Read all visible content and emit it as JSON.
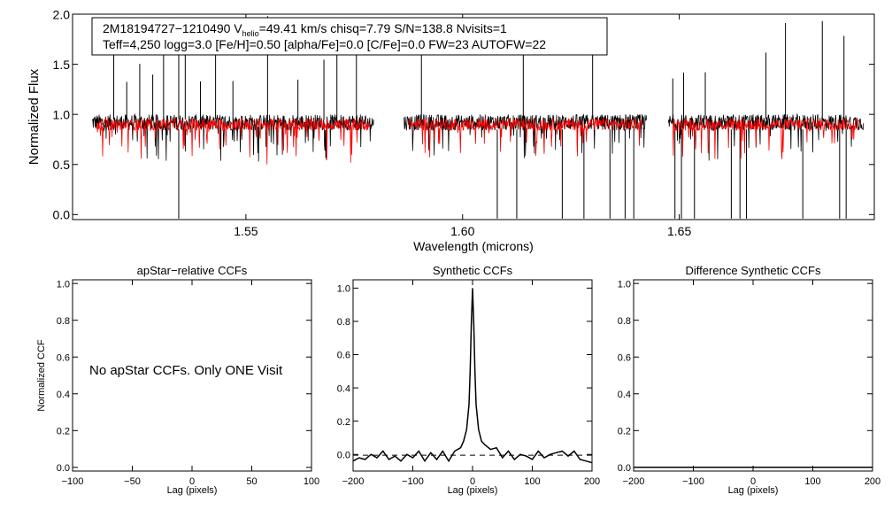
{
  "chart_data": [
    {
      "type": "line",
      "id": "spectrum",
      "ylabel": "Normalized Flux",
      "xlabel": "Wavelength (microns)",
      "xlim": [
        1.51,
        1.695
      ],
      "ylim": [
        -0.05,
        2.0
      ],
      "xticks": [
        1.55,
        1.6,
        1.65
      ],
      "xtick_labels": [
        "1.55",
        "1.60",
        "1.65"
      ],
      "yticks": [
        0.0,
        0.5,
        1.0,
        1.5,
        2.0
      ],
      "ytick_labels": [
        "0.0",
        "0.5",
        "1.0",
        "1.5",
        "2.0"
      ],
      "annotation": {
        "line1_prefix": "2M18194727−1210490  V",
        "line1_sub": "helio",
        "line1_suffix": "=49.41 km/s  chisq=7.79  S/N=138.8  Nvisits=1",
        "line2": "Teff=4,250 logg=3.0 [Fe/H]=0.50 [alpha/Fe]=0.0 [C/Fe]=0.0 FW=23 AUTOFW=22"
      },
      "series": [
        {
          "name": "observed",
          "color": "#000000"
        },
        {
          "name": "model",
          "color": "#ff0000"
        }
      ],
      "segments": [
        [
          1.5145,
          1.5795
        ],
        [
          1.5865,
          1.6425
        ],
        [
          1.6475,
          1.6925
        ]
      ],
      "model_segments": [
        [
          1.5155,
          1.5785
        ],
        [
          1.5875,
          1.6415
        ],
        [
          1.6485,
          1.6915
        ]
      ],
      "spikes_up": [
        1.5195,
        1.5225,
        1.5255,
        1.5285,
        1.531,
        1.5345,
        1.536,
        1.5395,
        1.543,
        1.547,
        1.555,
        1.562,
        1.568,
        1.571,
        1.5755,
        1.5905,
        1.614,
        1.63,
        1.6485,
        1.651,
        1.656,
        1.67,
        1.6745,
        1.683,
        1.688
      ],
      "spikes_down": [
        1.5345,
        1.608,
        1.6125,
        1.623,
        1.628,
        1.634,
        1.6375,
        1.6395,
        1.649,
        1.6505,
        1.6535,
        1.662,
        1.664,
        1.6655,
        1.6785,
        1.687,
        1.6885
      ]
    },
    {
      "type": "line",
      "id": "apstar_ccf",
      "title": "apStar−relative CCFs",
      "ylabel": "Normalized CCF",
      "xlabel": "Lag (pixels)",
      "xlim": [
        -100,
        100
      ],
      "ylim": [
        -0.02,
        1.02
      ],
      "xticks": [
        -100,
        -50,
        0,
        50,
        100
      ],
      "xtick_labels": [
        "−100",
        "−50",
        "0",
        "50",
        "100"
      ],
      "yticks": [
        0.0,
        0.2,
        0.4,
        0.6,
        0.8,
        1.0
      ],
      "ytick_labels": [
        "0.0",
        "0.2",
        "0.4",
        "0.6",
        "0.8",
        "1.0"
      ],
      "message": "No apStar CCFs.  Only ONE Visit",
      "series": []
    },
    {
      "type": "line",
      "id": "synthetic_ccf",
      "title": "Synthetic CCFs",
      "xlabel": "Lag (pixels)",
      "xlim": [
        -200,
        200
      ],
      "ylim": [
        -0.1,
        1.05
      ],
      "xticks": [
        -200,
        -100,
        0,
        100,
        200
      ],
      "xtick_labels": [
        "−200",
        "−100",
        "0",
        "100",
        "200"
      ],
      "yticks": [
        0.0,
        0.2,
        0.4,
        0.6,
        0.8,
        1.0
      ],
      "ytick_labels": [
        "0.0",
        "0.2",
        "0.4",
        "0.6",
        "0.8",
        "1.0"
      ],
      "baseline": -0.005,
      "series": [
        {
          "name": "ccf",
          "color": "#000000",
          "x": [
            -200,
            -190,
            -180,
            -170,
            -160,
            -150,
            -140,
            -130,
            -120,
            -110,
            -100,
            -90,
            -80,
            -70,
            -60,
            -50,
            -40,
            -30,
            -20,
            -15,
            -10,
            -6,
            -4,
            -2,
            0,
            2,
            4,
            6,
            10,
            15,
            20,
            30,
            40,
            50,
            60,
            70,
            80,
            90,
            100,
            110,
            120,
            130,
            140,
            150,
            160,
            170,
            180,
            190,
            200
          ],
          "y": [
            -0.04,
            -0.02,
            -0.03,
            0.0,
            -0.02,
            0.02,
            -0.03,
            -0.01,
            -0.04,
            0.0,
            -0.02,
            0.02,
            -0.04,
            0.01,
            -0.03,
            0.02,
            -0.04,
            0.02,
            0.04,
            0.08,
            0.15,
            0.3,
            0.5,
            0.78,
            1.0,
            0.78,
            0.5,
            0.3,
            0.15,
            0.08,
            0.06,
            0.03,
            0.04,
            -0.02,
            0.02,
            -0.03,
            0.0,
            -0.01,
            -0.03,
            0.02,
            -0.02,
            0.0,
            0.01,
            0.02,
            -0.01,
            0.02,
            -0.03,
            -0.04,
            -0.05
          ]
        }
      ]
    },
    {
      "type": "line",
      "id": "difference_ccf",
      "title": "Difference Synthetic CCFs",
      "xlabel": "Lag (pixels)",
      "xlim": [
        -200,
        200
      ],
      "ylim": [
        -0.02,
        1.02
      ],
      "xticks": [
        -200,
        -100,
        0,
        100,
        200
      ],
      "xtick_labels": [
        "−200",
        "−100",
        "0",
        "100",
        "200"
      ],
      "yticks": [
        0.0,
        0.2,
        0.4,
        0.6,
        0.8,
        1.0
      ],
      "ytick_labels": [
        "0.0",
        "0.2",
        "0.4",
        "0.6",
        "0.8",
        "1.0"
      ],
      "series": [
        {
          "name": "diff",
          "color": "#000000",
          "x": [
            -200,
            200
          ],
          "y": [
            0.0,
            0.0
          ]
        }
      ]
    }
  ]
}
